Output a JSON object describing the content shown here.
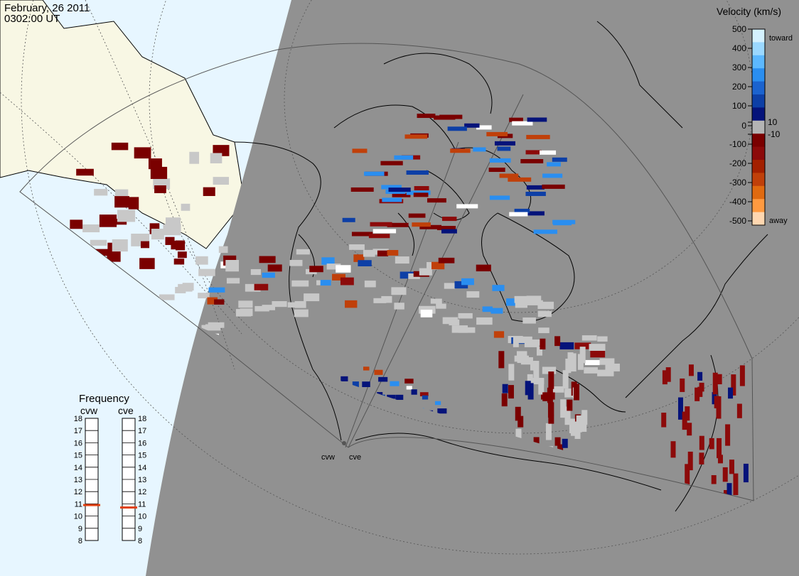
{
  "header": {
    "date": "February, 26 2011",
    "time": "0302:00 UT"
  },
  "colorbar": {
    "title": "Velocity (km/s)",
    "toward_label": "toward",
    "away_label": "away",
    "ticks": [
      "500",
      "400",
      "300",
      "200",
      "100",
      "10",
      "0",
      "-10",
      "-100",
      "-200",
      "-300",
      "-400",
      "-500"
    ],
    "colors": [
      "#d4f1ff",
      "#9bd8ff",
      "#5cb8ff",
      "#2a8ef0",
      "#1b63cf",
      "#0d3fa6",
      "#05137a",
      "#b4b4b4",
      "#7a0000",
      "#8c0a0a",
      "#a32000",
      "#c0400a",
      "#e06a10",
      "#ff9a40",
      "#ffd7b0"
    ]
  },
  "frequency": {
    "title": "Frequency",
    "radars": [
      "cvw",
      "cve"
    ],
    "ticks": [
      "18",
      "17",
      "16",
      "15",
      "14",
      "13",
      "12",
      "11",
      "10",
      "9",
      "8"
    ],
    "values_mhz": [
      10.9,
      10.7
    ],
    "marker_color": "#e04010"
  },
  "map": {
    "radar_labels": [
      "cvw",
      "cve"
    ],
    "colors": {
      "land_sunlit": "#f8f7e4",
      "ocean_sunlit": "#e7f6ff",
      "night": "#919191",
      "ground_scatter": "#c8c8c8"
    }
  }
}
